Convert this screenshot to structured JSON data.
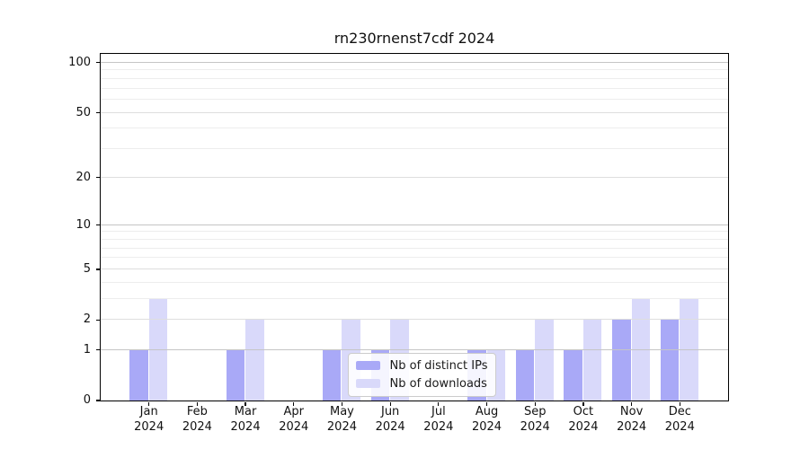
{
  "chart_data": {
    "type": "bar",
    "title": "rn230rnenst7cdf 2024",
    "scale": "log10(1+x)",
    "categories": [
      "Jan 2024",
      "Feb 2024",
      "Mar 2024",
      "Apr 2024",
      "May 2024",
      "Jun 2024",
      "Jul 2024",
      "Aug 2024",
      "Sep 2024",
      "Oct 2024",
      "Nov 2024",
      "Dec 2024"
    ],
    "series": [
      {
        "name": "Nb of distinct IPs",
        "color": "#a9a9f7",
        "values": [
          1,
          0,
          1,
          0,
          1,
          1,
          0,
          1,
          1,
          1,
          2,
          2
        ]
      },
      {
        "name": "Nb of downloads",
        "color": "#d9d9fa",
        "values": [
          3,
          0,
          2,
          0,
          2,
          2,
          0,
          1,
          2,
          2,
          3,
          3
        ]
      }
    ],
    "yticks": [
      0,
      1,
      2,
      5,
      10,
      20,
      50,
      100
    ],
    "minor_gridlines": [
      3,
      4,
      6,
      7,
      8,
      9,
      30,
      40,
      60,
      70,
      80,
      90
    ],
    "decade_gridlines": [
      1,
      10,
      100
    ],
    "ylim": [
      0,
      113
    ],
    "xlabel": "",
    "ylabel": "",
    "grid": true,
    "grid_above_bars": true,
    "legend_position": "lower center",
    "axis_color": "#000000",
    "grid_color_major": "#c5c5c5",
    "grid_color_minor": "#ededed"
  }
}
